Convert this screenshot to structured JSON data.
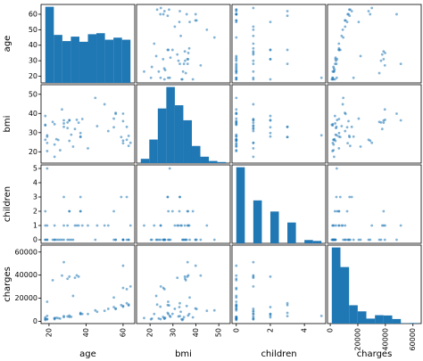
{
  "chart_data": {
    "type": "scatter_matrix",
    "variables": [
      "age",
      "bmi",
      "children",
      "charges"
    ],
    "color": "#1f77b4",
    "points": {
      "age": [
        19,
        18,
        28,
        33,
        32,
        31,
        46,
        37,
        37,
        60,
        25,
        62,
        23,
        56,
        27,
        19,
        52,
        23,
        56,
        30,
        60,
        30,
        18,
        34,
        37,
        59,
        63,
        55,
        23,
        31,
        22,
        18,
        19,
        63,
        28,
        19,
        62,
        26,
        35,
        60,
        24,
        31,
        41,
        38,
        55,
        18,
        28,
        60,
        36,
        64,
        45,
        50
      ],
      "bmi": [
        27.9,
        33.8,
        33.0,
        22.7,
        28.9,
        25.7,
        33.4,
        27.7,
        29.8,
        25.8,
        26.2,
        26.3,
        34.4,
        39.8,
        42.1,
        24.6,
        30.8,
        23.8,
        40.3,
        35.3,
        36.0,
        32.4,
        34.1,
        31.9,
        28.0,
        27.7,
        23.1,
        32.8,
        17.4,
        36.3,
        35.6,
        26.3,
        28.6,
        28.3,
        36.4,
        20.4,
        33.0,
        20.8,
        36.7,
        39.9,
        26.6,
        36.6,
        21.8,
        37.1,
        37.3,
        38.7,
        34.8,
        24.5,
        35.2,
        24.7,
        48.1,
        44.8
      ],
      "children": [
        0,
        1,
        3,
        0,
        0,
        0,
        1,
        3,
        2,
        0,
        0,
        0,
        0,
        0,
        0,
        1,
        1,
        0,
        0,
        0,
        0,
        1,
        0,
        1,
        2,
        3,
        0,
        2,
        1,
        2,
        0,
        0,
        5,
        0,
        1,
        0,
        3,
        0,
        1,
        0,
        0,
        2,
        1,
        1,
        0,
        2,
        0,
        0,
        1,
        1,
        0,
        1
      ],
      "charges": [
        16885,
        1726,
        4449,
        21984,
        3867,
        3757,
        8241,
        7282,
        6406,
        28923,
        2721,
        27809,
        1827,
        11091,
        39612,
        1837,
        10797,
        2395,
        10602,
        36837,
        13229,
        4150,
        1137,
        37702,
        6204,
        14001,
        14451,
        12269,
        2775,
        38711,
        35586,
        2198,
        4687,
        13770,
        51195,
        1625,
        15612,
        2302,
        39774,
        48173,
        3046,
        4949,
        6272,
        6313,
        20630,
        3393,
        3557,
        12629,
        38709,
        30166,
        9432,
        9058
      ]
    },
    "histograms": [
      {
        "bins": [
          18,
          22.6,
          27.2,
          31.8,
          36.4,
          41,
          45.6,
          50.2,
          54.8,
          59.4,
          64
        ],
        "counts": [
          222,
          140,
          122,
          135,
          120,
          142,
          145,
          126,
          132,
          126
        ]
      },
      {
        "bins": [
          15.96,
          19.67,
          23.39,
          27.1,
          30.82,
          34.53,
          38.25,
          41.96,
          45.68,
          49.39,
          53.13
        ],
        "counts": [
          20,
          110,
          255,
          355,
          270,
          200,
          80,
          30,
          10,
          5
        ]
      },
      {
        "bins": [
          0,
          0.5,
          1,
          1.5,
          2,
          2.5,
          3,
          3.5,
          4,
          4.5,
          5
        ],
        "counts": [
          574,
          0,
          324,
          0,
          240,
          0,
          157,
          0,
          25,
          18
        ]
      },
      {
        "bins": [
          1122,
          7387,
          13652,
          19917,
          26182,
          32447,
          38712,
          44977,
          51242,
          57507,
          63770
        ],
        "counts": [
          536,
          398,
          129,
          86,
          35,
          59,
          57,
          32,
          2,
          4
        ]
      }
    ],
    "lims": [
      [
        15.7,
        66.3
      ],
      [
        14.1,
        55.0
      ],
      [
        -0.25,
        5.25
      ],
      [
        -2000,
        66000
      ]
    ],
    "xticks": [
      [
        20,
        40,
        60
      ],
      [
        20,
        30,
        40,
        50
      ],
      [
        0,
        2,
        4
      ],
      [
        0,
        20000,
        40000,
        60000
      ]
    ],
    "yticks": [
      [
        20,
        30,
        40,
        50,
        60
      ],
      [
        20,
        30,
        40,
        50
      ],
      [
        0,
        1,
        2,
        3,
        4,
        5
      ],
      [
        0,
        20000,
        40000,
        60000
      ]
    ]
  }
}
